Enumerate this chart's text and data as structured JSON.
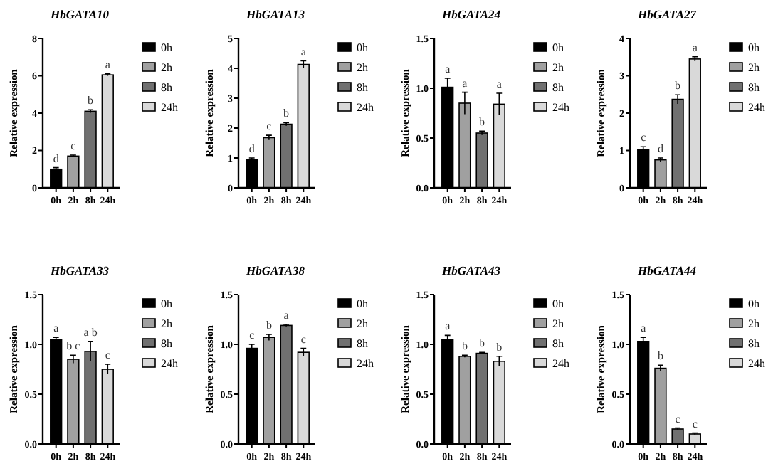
{
  "chart_data": [
    {
      "type": "bar",
      "stacked": true,
      "title": "HbGATA10",
      "ylabel": "Relative expression",
      "categories": [
        "0h",
        "2h",
        "8h",
        "24h"
      ],
      "series": [
        {
          "name": "0h",
          "color": "#000000",
          "values": [
            1.0,
            null,
            null,
            null
          ],
          "errors": [
            0.08,
            null,
            null,
            null
          ]
        },
        {
          "name": "2h",
          "color": "#a0a0a0",
          "values": [
            null,
            1.7,
            null,
            null
          ],
          "errors": [
            null,
            0.05,
            null,
            null
          ]
        },
        {
          "name": "8h",
          "color": "#707070",
          "values": [
            null,
            null,
            4.1,
            null
          ],
          "errors": [
            null,
            null,
            0.08,
            null
          ]
        },
        {
          "name": "24h",
          "color": "#d9d9d9",
          "values": [
            null,
            null,
            null,
            6.05
          ],
          "errors": [
            null,
            null,
            null,
            0.05
          ]
        }
      ],
      "ylim": [
        0,
        8
      ],
      "yticks": [
        0,
        2,
        4,
        6,
        8
      ],
      "legend": "right",
      "annotations": [
        {
          "text": "d",
          "x": "0h",
          "y": 1.0
        },
        {
          "text": "c",
          "x": "2h",
          "y": 1.7
        },
        {
          "text": "b",
          "x": "8h",
          "y": 4.1
        },
        {
          "text": "a",
          "x": "24h",
          "y": 6.05
        }
      ]
    },
    {
      "type": "bar",
      "stacked": true,
      "title": "HbGATA13",
      "ylabel": "Relative expression",
      "categories": [
        "0h",
        "2h",
        "8h",
        "24h"
      ],
      "series": [
        {
          "name": "0h",
          "color": "#000000",
          "values": [
            0.95,
            null,
            null,
            null
          ],
          "errors": [
            0.05,
            null,
            null,
            null
          ]
        },
        {
          "name": "2h",
          "color": "#a0a0a0",
          "values": [
            null,
            1.68,
            null,
            null
          ],
          "errors": [
            null,
            0.08,
            null,
            null
          ]
        },
        {
          "name": "8h",
          "color": "#707070",
          "values": [
            null,
            null,
            2.13,
            null
          ],
          "errors": [
            null,
            null,
            0.05,
            null
          ]
        },
        {
          "name": "24h",
          "color": "#d9d9d9",
          "values": [
            null,
            null,
            null,
            4.13
          ],
          "errors": [
            null,
            null,
            null,
            0.12
          ]
        }
      ],
      "ylim": [
        0,
        5
      ],
      "yticks": [
        0,
        1,
        2,
        3,
        4,
        5
      ],
      "legend": "right",
      "annotations": [
        {
          "text": "d",
          "x": "0h",
          "y": 0.95
        },
        {
          "text": "c",
          "x": "2h",
          "y": 1.68
        },
        {
          "text": "b",
          "x": "8h",
          "y": 2.13
        },
        {
          "text": "a",
          "x": "24h",
          "y": 4.13
        }
      ]
    },
    {
      "type": "bar",
      "stacked": true,
      "title": "HbGATA24",
      "ylabel": "Relative expression",
      "categories": [
        "0h",
        "2h",
        "8h",
        "24h"
      ],
      "series": [
        {
          "name": "0h",
          "color": "#000000",
          "values": [
            1.01,
            null,
            null,
            null
          ],
          "errors": [
            0.09,
            null,
            null,
            null
          ]
        },
        {
          "name": "2h",
          "color": "#a0a0a0",
          "values": [
            null,
            0.85,
            null,
            null
          ],
          "errors": [
            null,
            0.11,
            null,
            null
          ]
        },
        {
          "name": "8h",
          "color": "#707070",
          "values": [
            null,
            null,
            0.55,
            null
          ],
          "errors": [
            null,
            null,
            0.02,
            null
          ]
        },
        {
          "name": "24h",
          "color": "#d9d9d9",
          "values": [
            null,
            null,
            null,
            0.84
          ],
          "errors": [
            null,
            null,
            null,
            0.11
          ]
        }
      ],
      "ylim": [
        0,
        1.5
      ],
      "yticks": [
        {
          "value": 0,
          "label": "0.0"
        },
        {
          "value": 0.5,
          "label": "0.5"
        },
        {
          "value": 1,
          "label": "1.0"
        },
        {
          "value": 1.5,
          "label": "1.5"
        }
      ],
      "legend": "right",
      "annotations": [
        {
          "text": "a",
          "x": "0h",
          "y": 1.01
        },
        {
          "text": "a",
          "x": "2h",
          "y": 0.85
        },
        {
          "text": "b",
          "x": "8h",
          "y": 0.55
        },
        {
          "text": "a",
          "x": "24h",
          "y": 0.84
        }
      ]
    },
    {
      "type": "bar",
      "stacked": true,
      "title": "HbGATA27",
      "ylabel": "Relative expression",
      "categories": [
        "0h",
        "2h",
        "8h",
        "24h"
      ],
      "series": [
        {
          "name": "0h",
          "color": "#000000",
          "values": [
            1.02,
            null,
            null,
            null
          ],
          "errors": [
            0.08,
            null,
            null,
            null
          ]
        },
        {
          "name": "2h",
          "color": "#a0a0a0",
          "values": [
            null,
            0.75,
            null,
            null
          ],
          "errors": [
            null,
            0.05,
            null,
            null
          ]
        },
        {
          "name": "8h",
          "color": "#707070",
          "values": [
            null,
            null,
            2.37,
            null
          ],
          "errors": [
            null,
            null,
            0.12,
            null
          ]
        },
        {
          "name": "24h",
          "color": "#d9d9d9",
          "values": [
            null,
            null,
            null,
            3.45
          ],
          "errors": [
            null,
            null,
            null,
            0.06
          ]
        }
      ],
      "ylim": [
        0,
        4
      ],
      "yticks": [
        0,
        1,
        2,
        3,
        4
      ],
      "legend": "right",
      "annotations": [
        {
          "text": "c",
          "x": "0h",
          "y": 1.02
        },
        {
          "text": "d",
          "x": "2h",
          "y": 0.75
        },
        {
          "text": "b",
          "x": "8h",
          "y": 2.37
        },
        {
          "text": "a",
          "x": "24h",
          "y": 3.45
        }
      ]
    },
    {
      "type": "bar",
      "stacked": true,
      "title": "HbGATA33",
      "ylabel": "Relative expression",
      "categories": [
        "0h",
        "2h",
        "8h",
        "24h"
      ],
      "series": [
        {
          "name": "0h",
          "color": "#000000",
          "values": [
            1.05,
            null,
            null,
            null
          ],
          "errors": [
            0.02,
            null,
            null,
            null
          ]
        },
        {
          "name": "2h",
          "color": "#a0a0a0",
          "values": [
            null,
            0.85,
            null,
            null
          ],
          "errors": [
            null,
            0.04,
            null,
            null
          ]
        },
        {
          "name": "8h",
          "color": "#707070",
          "values": [
            null,
            null,
            0.93,
            null
          ],
          "errors": [
            null,
            null,
            0.1,
            null
          ]
        },
        {
          "name": "24h",
          "color": "#d9d9d9",
          "values": [
            null,
            null,
            null,
            0.75
          ],
          "errors": [
            null,
            null,
            null,
            0.05
          ]
        }
      ],
      "ylim": [
        0,
        1.5
      ],
      "yticks": [
        {
          "value": 0,
          "label": "0.0"
        },
        {
          "value": 0.5,
          "label": "0.5"
        },
        {
          "value": 1,
          "label": "1.0"
        },
        {
          "value": 1.5,
          "label": "1.5"
        }
      ],
      "legend": "right",
      "annotations": [
        {
          "text": "a",
          "x": "0h",
          "y": 1.05
        },
        {
          "text": "b c",
          "x": "2h",
          "y": 0.85
        },
        {
          "text": "a b",
          "x": "8h",
          "y": 0.93
        },
        {
          "text": "c",
          "x": "24h",
          "y": 0.75
        }
      ]
    },
    {
      "type": "bar",
      "stacked": true,
      "title": "HbGATA38",
      "ylabel": "Relative expression",
      "categories": [
        "0h",
        "2h",
        "8h",
        "24h"
      ],
      "series": [
        {
          "name": "0h",
          "color": "#000000",
          "values": [
            0.96,
            null,
            null,
            null
          ],
          "errors": [
            0.04,
            null,
            null,
            null
          ]
        },
        {
          "name": "2h",
          "color": "#a0a0a0",
          "values": [
            null,
            1.07,
            null,
            null
          ],
          "errors": [
            null,
            0.03,
            null,
            null
          ]
        },
        {
          "name": "8h",
          "color": "#707070",
          "values": [
            null,
            null,
            1.19,
            null
          ],
          "errors": [
            null,
            null,
            0.01,
            null
          ]
        },
        {
          "name": "24h",
          "color": "#d9d9d9",
          "values": [
            null,
            null,
            null,
            0.92
          ],
          "errors": [
            null,
            null,
            null,
            0.04
          ]
        }
      ],
      "ylim": [
        0,
        1.5
      ],
      "yticks": [
        {
          "value": 0,
          "label": "0.0"
        },
        {
          "value": 0.5,
          "label": "0.5"
        },
        {
          "value": 1,
          "label": "1.0"
        },
        {
          "value": 1.5,
          "label": "1.5"
        }
      ],
      "legend": "right",
      "annotations": [
        {
          "text": "c",
          "x": "0h",
          "y": 0.96
        },
        {
          "text": "b",
          "x": "2h",
          "y": 1.07
        },
        {
          "text": "a",
          "x": "8h",
          "y": 1.19
        },
        {
          "text": "c",
          "x": "24h",
          "y": 0.92
        }
      ]
    },
    {
      "type": "bar",
      "stacked": true,
      "title": "HbGATA43",
      "ylabel": "Relative expression",
      "categories": [
        "0h",
        "2h",
        "8h",
        "24h"
      ],
      "series": [
        {
          "name": "0h",
          "color": "#000000",
          "values": [
            1.05,
            null,
            null,
            null
          ],
          "errors": [
            0.04,
            null,
            null,
            null
          ]
        },
        {
          "name": "2h",
          "color": "#a0a0a0",
          "values": [
            null,
            0.88,
            null,
            null
          ],
          "errors": [
            null,
            0.01,
            null,
            null
          ]
        },
        {
          "name": "8h",
          "color": "#707070",
          "values": [
            null,
            null,
            0.91,
            null
          ],
          "errors": [
            null,
            null,
            0.01,
            null
          ]
        },
        {
          "name": "24h",
          "color": "#d9d9d9",
          "values": [
            null,
            null,
            null,
            0.83
          ],
          "errors": [
            null,
            null,
            null,
            0.05
          ]
        }
      ],
      "ylim": [
        0,
        1.5
      ],
      "yticks": [
        {
          "value": 0,
          "label": "0.0"
        },
        {
          "value": 0.5,
          "label": "0.5"
        },
        {
          "value": 1,
          "label": "1.0"
        },
        {
          "value": 1.5,
          "label": "1.5"
        }
      ],
      "legend": "right",
      "annotations": [
        {
          "text": "a",
          "x": "0h",
          "y": 1.05
        },
        {
          "text": "b",
          "x": "2h",
          "y": 0.88
        },
        {
          "text": "b",
          "x": "8h",
          "y": 0.91
        },
        {
          "text": "b",
          "x": "24h",
          "y": 0.83
        }
      ]
    },
    {
      "type": "bar",
      "stacked": true,
      "title": "HbGATA44",
      "ylabel": "Relative expression",
      "categories": [
        "0h",
        "2h",
        "8h",
        "24h"
      ],
      "series": [
        {
          "name": "0h",
          "color": "#000000",
          "values": [
            1.03,
            null,
            null,
            null
          ],
          "errors": [
            0.04,
            null,
            null,
            null
          ]
        },
        {
          "name": "2h",
          "color": "#a0a0a0",
          "values": [
            null,
            0.76,
            null,
            null
          ],
          "errors": [
            null,
            0.03,
            null,
            null
          ]
        },
        {
          "name": "8h",
          "color": "#707070",
          "values": [
            null,
            null,
            0.15,
            null
          ],
          "errors": [
            null,
            null,
            0.01,
            null
          ]
        },
        {
          "name": "24h",
          "color": "#d9d9d9",
          "values": [
            null,
            null,
            null,
            0.1
          ],
          "errors": [
            null,
            null,
            null,
            0.01
          ]
        }
      ],
      "ylim": [
        0,
        1.5
      ],
      "yticks": [
        {
          "value": 0,
          "label": "0.0"
        },
        {
          "value": 0.5,
          "label": "0.5"
        },
        {
          "value": 1,
          "label": "1.0"
        },
        {
          "value": 1.5,
          "label": "1.5"
        }
      ],
      "legend": "right",
      "annotations": [
        {
          "text": "a",
          "x": "0h",
          "y": 1.03
        },
        {
          "text": "b",
          "x": "2h",
          "y": 0.76
        },
        {
          "text": "c",
          "x": "8h",
          "y": 0.15
        },
        {
          "text": "c",
          "x": "24h",
          "y": 0.1
        }
      ]
    }
  ]
}
